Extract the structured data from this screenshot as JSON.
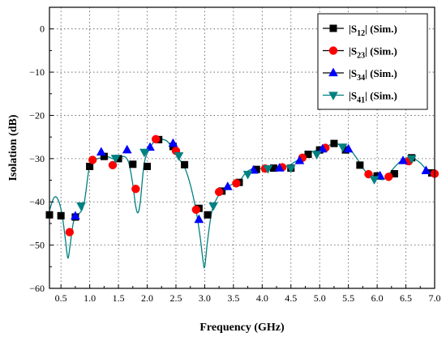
{
  "chart_data": {
    "type": "line",
    "title": "",
    "xlabel": "Frequency (GHz)",
    "ylabel": "Isolation (dB)",
    "xlim": [
      0.3,
      7.0
    ],
    "ylim": [
      -60,
      5
    ],
    "x_ticks": [
      0.5,
      1.0,
      1.5,
      2.0,
      2.5,
      3.0,
      3.5,
      4.0,
      4.5,
      5.0,
      5.5,
      6.0,
      6.5,
      7.0
    ],
    "x_tick_labels": [
      "0.5",
      "1.0",
      "1.5",
      "2.0",
      "2.5",
      "3.0",
      "3.5",
      "4.0",
      "4.5",
      "5.0",
      "5.5",
      "6.0",
      "6.5",
      "7.0"
    ],
    "y_ticks": [
      0,
      -10,
      -20,
      -30,
      -40,
      -50,
      -60
    ],
    "y_tick_labels": [
      "0",
      "−10",
      "−20",
      "−30",
      "−40",
      "−50",
      "−60"
    ],
    "grid": true,
    "legend_position": "top-right",
    "series": [
      {
        "name": "|S12| (Sim.)",
        "name_main": "|S",
        "name_sub": "12",
        "name_rest": "| (Sim.)",
        "marker": "square",
        "color": "#000000",
        "x": [
          0.3,
          0.5,
          0.75,
          1.0,
          1.25,
          1.5,
          1.75,
          2.0,
          2.2,
          2.45,
          2.65,
          2.9,
          3.05,
          3.3,
          3.6,
          3.9,
          4.2,
          4.5,
          4.8,
          5.0,
          5.25,
          5.45,
          5.7,
          6.0,
          6.3,
          6.6,
          6.95
        ],
        "y": [
          -43,
          -43.2,
          -43.5,
          -31.8,
          -29.5,
          -30.0,
          -31.3,
          -31.8,
          -25.6,
          -27.2,
          -31.4,
          -41.5,
          -43.0,
          -37.5,
          -35.5,
          -32.5,
          -32.2,
          -32.2,
          -29.0,
          -28.0,
          -26.5,
          -28.0,
          -31.5,
          -34.0,
          -33.5,
          -29.8,
          -33.3
        ]
      },
      {
        "name": "|S23| (Sim.)",
        "name_main": "|S",
        "name_sub": "23",
        "name_rest": "| (Sim.)",
        "marker": "circle",
        "color": "#ff0000",
        "x": [
          0.65,
          1.05,
          1.4,
          1.8,
          2.15,
          2.5,
          2.85,
          3.25,
          3.55,
          4.05,
          4.35,
          4.7,
          5.1,
          5.85,
          6.2,
          6.55,
          7.0
        ],
        "y": [
          -47.0,
          -30.3,
          -31.5,
          -37.0,
          -25.5,
          -28.2,
          -41.8,
          -37.7,
          -35.7,
          -32.3,
          -32.0,
          -29.8,
          -27.5,
          -33.6,
          -34.2,
          -30.6,
          -33.5
        ]
      },
      {
        "name": "|S34| (Sim.)",
        "name_main": "|S",
        "name_sub": "34",
        "name_rest": "| (Sim.)",
        "marker": "triangle-up",
        "color": "#0000ff",
        "x": [
          0.75,
          1.2,
          1.65,
          2.05,
          2.45,
          2.9,
          3.4,
          3.85,
          4.3,
          4.65,
          5.05,
          5.5,
          6.05,
          6.45,
          6.85
        ],
        "y": [
          -43.3,
          -28.5,
          -28.0,
          -27.4,
          -26.5,
          -44.1,
          -36.5,
          -32.7,
          -32.2,
          -30.5,
          -27.8,
          -27.8,
          -34.0,
          -30.5,
          -32.8
        ]
      },
      {
        "name": "|S41| (Sim.)",
        "name_main": "|S",
        "name_sub": "41",
        "name_rest": "| (Sim.)",
        "marker": "triangle-down",
        "color": "#008080",
        "x": [
          0.85,
          1.45,
          1.95,
          2.55,
          3.15,
          3.75,
          4.1,
          4.5,
          4.95,
          5.4,
          5.95,
          6.6
        ],
        "y": [
          -40.9,
          -29.9,
          -28.5,
          -29.3,
          -40.9,
          -33.6,
          -32.3,
          -32.2,
          -29.0,
          -27.3,
          -34.8,
          -30.0
        ]
      }
    ],
    "curve": {
      "color": "#008080",
      "x": [
        0.3,
        0.38,
        0.45,
        0.52,
        0.58,
        0.62,
        0.66,
        0.72,
        0.8,
        0.9,
        1.0,
        1.1,
        1.2,
        1.3,
        1.4,
        1.5,
        1.6,
        1.68,
        1.75,
        1.8,
        1.84,
        1.88,
        1.95,
        2.05,
        2.15,
        2.25,
        2.35,
        2.45,
        2.55,
        2.65,
        2.75,
        2.85,
        2.92,
        2.97,
        3.0,
        3.05,
        3.12,
        3.2,
        3.3,
        3.4,
        3.5,
        3.6,
        3.7,
        3.8,
        3.9,
        4.0,
        4.2,
        4.4,
        4.6,
        4.8,
        5.0,
        5.15,
        5.25,
        5.35,
        5.5,
        5.65,
        5.8,
        5.95,
        6.05,
        6.15,
        6.3,
        6.45,
        6.6,
        6.75,
        6.9,
        7.0
      ],
      "y": [
        -42.0,
        -39.0,
        -39.5,
        -43.0,
        -49.0,
        -53.0,
        -50.0,
        -44.5,
        -43.0,
        -40.5,
        -31.5,
        -30.2,
        -29.8,
        -29.5,
        -30.0,
        -30.0,
        -29.5,
        -31.0,
        -36.0,
        -41.0,
        -42.5,
        -40.0,
        -31.0,
        -27.5,
        -25.7,
        -25.5,
        -26.0,
        -27.8,
        -30.0,
        -32.0,
        -36.0,
        -42.0,
        -48.0,
        -53.5,
        -55.0,
        -49.0,
        -42.5,
        -39.5,
        -37.5,
        -36.5,
        -35.8,
        -35.3,
        -33.5,
        -32.5,
        -32.4,
        -32.3,
        -32.3,
        -32.0,
        -30.5,
        -28.8,
        -27.8,
        -27.0,
        -26.5,
        -26.8,
        -27.5,
        -30.0,
        -33.0,
        -34.0,
        -34.8,
        -34.5,
        -32.0,
        -30.2,
        -29.8,
        -31.0,
        -33.2,
        -33.5
      ]
    }
  }
}
